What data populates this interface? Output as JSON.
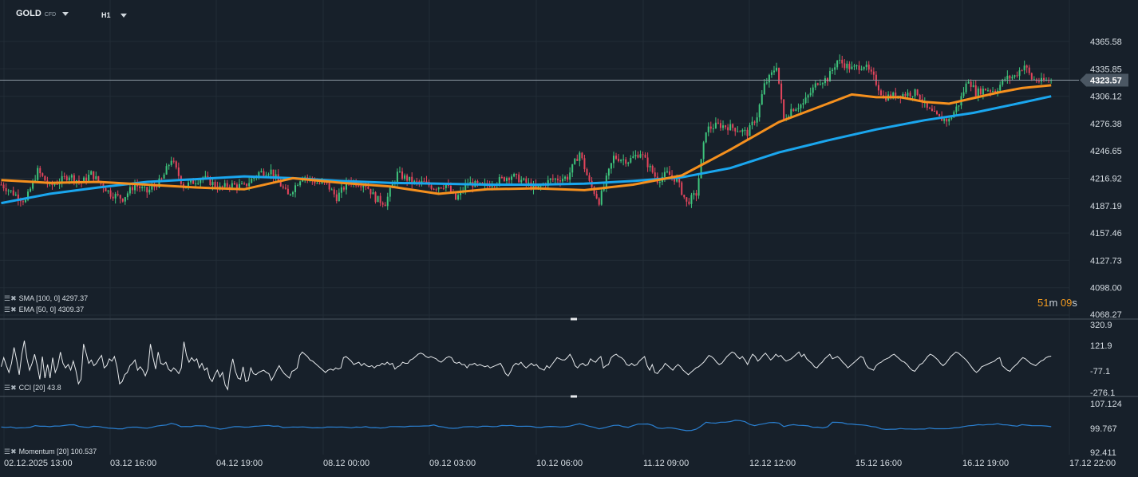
{
  "header": {
    "symbol": "GOLD",
    "symbol_sub": "CFD",
    "timeframe": "H1"
  },
  "indicators": {
    "sma_label": "SMA [100,  0]",
    "sma_value": "4297.37",
    "ema_label": "EMA [50,  0]",
    "ema_value": "4309.37",
    "cci_label": "CCI [20]",
    "cci_value": "43.8",
    "mom_label": "Momentum  [20]",
    "mom_value": "100.537"
  },
  "countdown": {
    "minutes": "51",
    "m": "m",
    "seconds": "09",
    "s": "s"
  },
  "colors": {
    "background": "#17202a",
    "up": "#3ec47c",
    "down": "#e4455c",
    "sma": "#1aa6ee",
    "ema": "#f5901e",
    "cci": "#e6e9ec",
    "momentum": "#2a7fd0",
    "axis_text": "#d6dde3"
  },
  "chart_data": [
    {
      "type": "candlestick",
      "title": "GOLD CFD H1",
      "price_axis_ticks": [
        "4365.58",
        "4335.85",
        "4306.12",
        "4276.38",
        "4246.65",
        "4216.92",
        "4187.19",
        "4157.46",
        "4127.73",
        "4098.00",
        "4068.27"
      ],
      "ylim": [
        4068.27,
        4365.58
      ],
      "current_price": "4323.57",
      "x_ticks": [
        "02.12.2025  13:00",
        "03.12  16:00",
        "04.12  19:00",
        "08.12  00:00",
        "09.12  03:00",
        "10.12  06:00",
        "11.12  09:00",
        "12.12  12:00",
        "15.12  16:00",
        "16.12  19:00",
        "17.12  22:00"
      ],
      "close_path": [
        [
          0,
          4210
        ],
        [
          8,
          4195
        ],
        [
          10,
          4192
        ],
        [
          15,
          4225
        ],
        [
          20,
          4208
        ],
        [
          28,
          4220
        ],
        [
          33,
          4212
        ],
        [
          37,
          4222
        ],
        [
          45,
          4200
        ],
        [
          50,
          4195
        ],
        [
          55,
          4210
        ],
        [
          60,
          4202
        ],
        [
          66,
          4215
        ],
        [
          70,
          4238
        ],
        [
          75,
          4208
        ],
        [
          83,
          4218
        ],
        [
          90,
          4206
        ],
        [
          94,
          4210
        ],
        [
          100,
          4208
        ],
        [
          106,
          4223
        ],
        [
          111,
          4225
        ],
        [
          118,
          4198
        ],
        [
          124,
          4220
        ],
        [
          130,
          4212
        ],
        [
          134,
          4210
        ],
        [
          138,
          4196
        ],
        [
          143,
          4214
        ],
        [
          150,
          4210
        ],
        [
          154,
          4195
        ],
        [
          158,
          4190
        ],
        [
          163,
          4222
        ],
        [
          170,
          4212
        ],
        [
          174,
          4212
        ],
        [
          178,
          4207
        ],
        [
          183,
          4210
        ],
        [
          187,
          4194
        ],
        [
          192,
          4212
        ],
        [
          198,
          4208
        ],
        [
          204,
          4214
        ],
        [
          210,
          4220
        ],
        [
          216,
          4212
        ],
        [
          220,
          4205
        ],
        [
          226,
          4215
        ],
        [
          233,
          4218
        ],
        [
          238,
          4245
        ],
        [
          242,
          4212
        ],
        [
          246,
          4192
        ],
        [
          252,
          4240
        ],
        [
          258,
          4236
        ],
        [
          263,
          4245
        ],
        [
          270,
          4215
        ],
        [
          274,
          4222
        ],
        [
          278,
          4215
        ],
        [
          282,
          4190
        ],
        [
          286,
          4200
        ],
        [
          290,
          4270
        ],
        [
          295,
          4275
        ],
        [
          301,
          4272
        ],
        [
          307,
          4266
        ],
        [
          311,
          4285
        ],
        [
          314,
          4318
        ],
        [
          317,
          4330
        ],
        [
          319,
          4340
        ],
        [
          322,
          4280
        ],
        [
          325,
          4292
        ],
        [
          330,
          4298
        ],
        [
          336,
          4322
        ],
        [
          340,
          4325
        ],
        [
          344,
          4345
        ],
        [
          350,
          4336
        ],
        [
          355,
          4340
        ],
        [
          359,
          4326
        ],
        [
          363,
          4305
        ],
        [
          370,
          4308
        ],
        [
          377,
          4310
        ],
        [
          381,
          4292
        ],
        [
          386,
          4282
        ],
        [
          390,
          4280
        ],
        [
          394,
          4298
        ],
        [
          398,
          4325
        ],
        [
          401,
          4310
        ],
        [
          405,
          4314
        ],
        [
          409,
          4312
        ],
        [
          413,
          4325
        ],
        [
          417,
          4328
        ],
        [
          421,
          4340
        ],
        [
          424,
          4325
        ],
        [
          428,
          4322
        ],
        [
          432,
          4323.57
        ]
      ],
      "series": [
        {
          "name": "SMA [100,  0]",
          "path": [
            [
              0,
              4190
            ],
            [
              20,
              4200
            ],
            [
              40,
              4207
            ],
            [
              60,
              4213
            ],
            [
              80,
              4216
            ],
            [
              100,
              4219
            ],
            [
              120,
              4217
            ],
            [
              140,
              4214
            ],
            [
              160,
              4212
            ],
            [
              180,
              4211
            ],
            [
              200,
              4210
            ],
            [
              220,
              4210
            ],
            [
              240,
              4211
            ],
            [
              260,
              4214
            ],
            [
              280,
              4218
            ],
            [
              300,
              4228
            ],
            [
              320,
              4245
            ],
            [
              340,
              4258
            ],
            [
              360,
              4270
            ],
            [
              380,
              4280
            ],
            [
              400,
              4288
            ],
            [
              418,
              4298
            ],
            [
              432,
              4306
            ]
          ]
        },
        {
          "name": "EMA [50,  0]",
          "path": [
            [
              0,
              4215
            ],
            [
              20,
              4212
            ],
            [
              40,
              4213
            ],
            [
              60,
              4210
            ],
            [
              80,
              4207
            ],
            [
              100,
              4205
            ],
            [
              120,
              4217
            ],
            [
              140,
              4212
            ],
            [
              160,
              4208
            ],
            [
              180,
              4200
            ],
            [
              200,
              4205
            ],
            [
              220,
              4206
            ],
            [
              240,
              4204
            ],
            [
              260,
              4210
            ],
            [
              280,
              4220
            ],
            [
              300,
              4248
            ],
            [
              320,
              4278
            ],
            [
              340,
              4298
            ],
            [
              350,
              4308
            ],
            [
              360,
              4305
            ],
            [
              370,
              4305
            ],
            [
              380,
              4300
            ],
            [
              390,
              4298
            ],
            [
              400,
              4304
            ],
            [
              410,
              4310
            ],
            [
              420,
              4315
            ],
            [
              432,
              4318
            ]
          ]
        }
      ]
    },
    {
      "type": "line",
      "title": "CCI [20]",
      "ylim": [
        -276.1,
        320.9
      ],
      "y_ticks": [
        "320.9",
        "121.9",
        "-77.1",
        "-276.1"
      ],
      "values": [
        -50,
        30,
        -40,
        -100,
        -20,
        120,
        10,
        -120,
        60,
        180,
        20,
        -80,
        -20,
        60,
        -40,
        -160,
        40,
        -150,
        -30,
        -150,
        30,
        -100,
        -40,
        80,
        -20,
        -60,
        -30,
        -80,
        0,
        -80,
        -200,
        -160,
        150,
        70,
        -20,
        10,
        -40,
        -20,
        20,
        50,
        -60,
        -40,
        20,
        0,
        40,
        -50,
        -200,
        -180,
        -120,
        -100,
        -40,
        -20,
        10,
        -80,
        -50,
        -80,
        -130,
        -70,
        150,
        30,
        -70,
        80,
        -20,
        -30,
        -10,
        -70,
        -90,
        -60,
        -80,
        -110,
        -60,
        170,
        50,
        -10,
        30,
        0,
        20,
        -60,
        -20,
        -80,
        -60,
        -150,
        -180,
        -120,
        -80,
        -140,
        -100,
        -210,
        -250,
        -80,
        20,
        -90,
        -150,
        -160,
        -50,
        -180,
        -170,
        -60,
        -110,
        -120,
        -100,
        -90,
        -80,
        -100,
        -110,
        -170,
        -130,
        -80,
        -40,
        -80,
        -110,
        -130,
        -150,
        -90,
        -80,
        -60,
        50,
        80,
        60,
        40,
        10,
        0,
        -20,
        -40,
        -60,
        -80,
        -100,
        -80,
        -70,
        -80,
        -60,
        -70,
        -60,
        30,
        40,
        20,
        0,
        -30,
        -20,
        -10,
        -40,
        -20,
        -40,
        -50,
        -40,
        -60,
        -40,
        -40,
        -20,
        -30,
        -10,
        -30,
        -20,
        -70,
        -50,
        -40,
        -10,
        -20,
        -20,
        10,
        20,
        40,
        60,
        70,
        60,
        40,
        30,
        40,
        30,
        20,
        0,
        -10,
        10,
        30,
        40,
        30,
        -10,
        -20,
        -10,
        -30,
        -30,
        -60,
        -30,
        -30,
        -20,
        -40,
        -30,
        -40,
        -50,
        -40,
        -60,
        -50,
        -40,
        -30,
        -20,
        -60,
        -110,
        -130,
        -90,
        -40,
        -20,
        -30,
        -10,
        -40,
        -60,
        -40,
        -20,
        -40,
        -30,
        -60,
        -70,
        -80,
        -40,
        -60,
        -30,
        0,
        30,
        20,
        10,
        10,
        30,
        60,
        20,
        -40,
        -60,
        -30,
        -20,
        -40,
        -30,
        20,
        0,
        -10,
        20,
        40,
        -60,
        -40,
        -30,
        30,
        50,
        60,
        40,
        30,
        10,
        -30,
        -40,
        -20,
        -40,
        -30,
        0,
        20,
        40,
        -40,
        -80,
        -30,
        -100,
        -110,
        -80,
        -60,
        -20,
        -40,
        -60,
        -80,
        -50,
        -30,
        -50,
        -80,
        -100,
        -120,
        -100,
        -80,
        -60,
        -50,
        -30,
        -10,
        20,
        50,
        40,
        20,
        -10,
        -30,
        -20,
        10,
        40,
        60,
        80,
        70,
        40,
        20,
        40,
        10,
        -30,
        20,
        60,
        40,
        0,
        20,
        50,
        70,
        40,
        10,
        30,
        60,
        40,
        50,
        20,
        0,
        10,
        20,
        40,
        60,
        80,
        40,
        60,
        20,
        0,
        -20,
        -50,
        -60,
        -30,
        -10,
        20,
        40,
        60,
        20,
        30,
        40,
        20,
        -10,
        -30,
        -60,
        -40,
        -20,
        0,
        20,
        40,
        30,
        -30,
        -60,
        -70,
        -80,
        -40,
        -20,
        -10,
        10,
        20,
        30,
        50,
        60,
        40,
        20,
        0,
        -10,
        -30,
        -60,
        -80,
        -90,
        -60,
        -30,
        -20,
        10,
        40,
        60,
        50,
        30,
        10,
        -20,
        -40,
        -20,
        10,
        40,
        60,
        80,
        70,
        50,
        30,
        10,
        -20,
        -50,
        -80,
        -100,
        -80,
        -50,
        -40,
        -30,
        -20,
        -10,
        0,
        20,
        30,
        -40,
        -60,
        -80,
        -90,
        -60,
        -40,
        -20,
        10,
        30,
        20,
        0,
        -20,
        -30,
        -40,
        -20,
        0,
        10,
        30,
        40,
        43.8
      ]
    },
    {
      "type": "line",
      "title": "Momentum  [20]",
      "ylim": [
        92.411,
        107.124
      ],
      "y_ticks": [
        "107.124",
        "99.767",
        "92.411"
      ]
    }
  ]
}
